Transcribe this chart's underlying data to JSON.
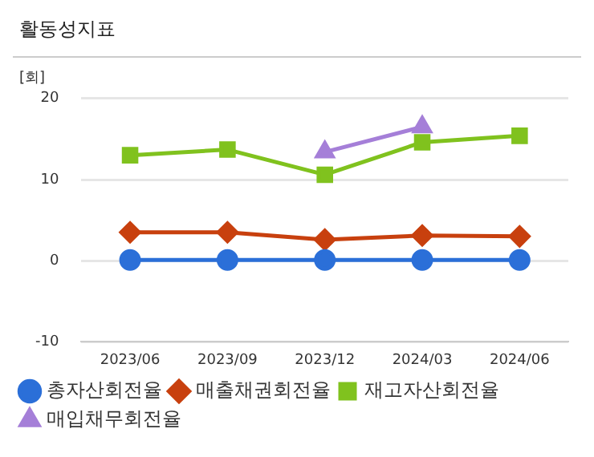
{
  "chart_data": {
    "type": "line",
    "title": "활동성지표",
    "ylabel": "[회]",
    "categories": [
      "2023/06",
      "2023/09",
      "2023/12",
      "2024/03",
      "2024/06"
    ],
    "series": [
      {
        "name": "총자산회전율",
        "color": "#2b6fd8",
        "marker": "circle",
        "values": [
          0.1,
          0.1,
          0.1,
          0.1,
          0.1
        ]
      },
      {
        "name": "매출채권회전율",
        "color": "#c8400e",
        "marker": "diamond",
        "values": [
          3.5,
          3.5,
          2.6,
          3.1,
          3.0
        ]
      },
      {
        "name": "재고자산회전율",
        "color": "#80c21e",
        "marker": "square",
        "values": [
          13.0,
          13.7,
          10.6,
          14.6,
          15.4
        ]
      },
      {
        "name": "매입채무회전율",
        "color": "#a57fd8",
        "marker": "triangle",
        "values": [
          null,
          null,
          13.4,
          16.5,
          null
        ]
      }
    ],
    "ylim": [
      -10,
      20
    ],
    "yticks": [
      -10,
      0,
      10,
      20
    ],
    "grid": "y",
    "legend": "bottom"
  }
}
